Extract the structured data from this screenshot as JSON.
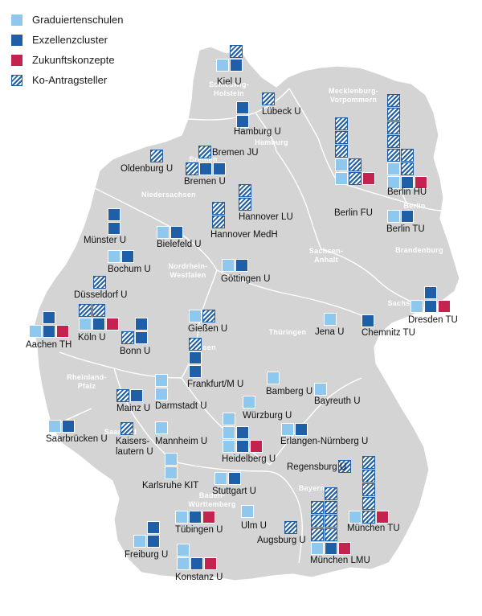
{
  "legend": {
    "items": [
      {
        "label": "Graduiertenschulen",
        "type": "grad"
      },
      {
        "label": "Exzellenzcluster",
        "type": "cluster"
      },
      {
        "label": "Zukunftskonzepte",
        "type": "zukunft"
      },
      {
        "label": "Ko-Antragsteller",
        "type": "ko"
      }
    ]
  },
  "colors": {
    "grad": "#8ec8ef",
    "cluster": "#1f5fa8",
    "zukunft": "#c42350",
    "ko_stripe": "#1f5fa8",
    "land": "#d4d4d4",
    "border": "#ffffff"
  },
  "regions": [
    {
      "id": "sh",
      "lines": [
        "Schleswig-",
        "Holstein"
      ]
    },
    {
      "id": "hh",
      "lines": [
        "Hamburg"
      ]
    },
    {
      "id": "mv",
      "lines": [
        "Mecklenburg-",
        "Vorpommern"
      ]
    },
    {
      "id": "hb",
      "lines": [
        "Bremen"
      ]
    },
    {
      "id": "ni",
      "lines": [
        "Niedersachsen"
      ]
    },
    {
      "id": "be",
      "lines": [
        "Berlin"
      ]
    },
    {
      "id": "bb",
      "lines": [
        "Brandenburg"
      ]
    },
    {
      "id": "st",
      "lines": [
        "Sachsen-",
        "Anhalt"
      ]
    },
    {
      "id": "nw",
      "lines": [
        "Nordrhein-",
        "Westfalen"
      ]
    },
    {
      "id": "sn",
      "lines": [
        "Sachsen"
      ]
    },
    {
      "id": "th",
      "lines": [
        "Thüringen"
      ]
    },
    {
      "id": "he",
      "lines": [
        "Hessen"
      ]
    },
    {
      "id": "rp",
      "lines": [
        "Rheinland-",
        "Pfalz"
      ]
    },
    {
      "id": "sl",
      "lines": [
        "Saarland"
      ]
    },
    {
      "id": "by",
      "lines": [
        "Bayern"
      ]
    },
    {
      "id": "bw",
      "lines": [
        "Baden-",
        "Württemberg"
      ]
    }
  ],
  "universities": [
    {
      "name": "Kiel U",
      "grid": [
        [
          null,
          "ko"
        ],
        [
          "grad",
          "cluster"
        ]
      ]
    },
    {
      "name": "Lübeck U",
      "grid": [
        [
          "ko"
        ]
      ]
    },
    {
      "name": "Hamburg U",
      "grid": [
        [
          "cluster"
        ],
        [
          "cluster"
        ]
      ]
    },
    {
      "name": "Bremen JU",
      "grid": [
        [
          "ko"
        ]
      ]
    },
    {
      "name": "Oldenburg U",
      "grid": [
        [
          "ko"
        ]
      ]
    },
    {
      "name": "Bremen U",
      "grid": [
        [
          "ko",
          "cluster",
          "cluster"
        ]
      ]
    },
    {
      "name": "Berlin HU",
      "grid": [
        [
          "ko",
          null
        ],
        [
          "ko",
          null
        ],
        [
          "ko",
          null
        ],
        [
          "ko",
          null
        ],
        [
          "ko",
          "ko"
        ],
        [
          "grad",
          "ko"
        ],
        [
          "grad",
          "cluster",
          "zukunft"
        ]
      ]
    },
    {
      "name": "Berlin FU",
      "grid": [
        [
          "ko",
          null,
          null
        ],
        [
          "ko",
          null,
          null
        ],
        [
          "ko",
          null,
          null
        ],
        [
          "grad",
          "ko",
          null
        ],
        [
          "grad",
          "ko",
          "zukunft"
        ]
      ]
    },
    {
      "name": "Berlin TU",
      "grid": [
        [
          "grad",
          "cluster"
        ]
      ]
    },
    {
      "name": "Hannover LU",
      "grid": [
        [
          "ko"
        ],
        [
          "ko"
        ]
      ]
    },
    {
      "name": "Hannover MedH",
      "grid": [
        [
          "ko"
        ],
        [
          "ko"
        ]
      ]
    },
    {
      "name": "Münster U",
      "grid": [
        [
          "cluster"
        ],
        [
          "cluster"
        ]
      ]
    },
    {
      "name": "Bielefeld U",
      "grid": [
        [
          "grad",
          "cluster"
        ]
      ]
    },
    {
      "name": "Bochum U",
      "grid": [
        [
          "grad",
          "cluster"
        ]
      ]
    },
    {
      "name": "Göttingen U",
      "grid": [
        [
          "grad",
          "cluster"
        ]
      ]
    },
    {
      "name": "Düsseldorf U",
      "grid": [
        [
          "ko"
        ]
      ]
    },
    {
      "name": "Aachen TH",
      "grid": [
        [
          null,
          "cluster",
          null
        ],
        [
          "grad",
          "cluster",
          "zukunft"
        ]
      ]
    },
    {
      "name": "Köln U",
      "grid": [
        [
          "ko",
          "ko",
          null
        ],
        [
          "grad",
          "cluster",
          "zukunft"
        ]
      ]
    },
    {
      "name": "Bonn U",
      "grid": [
        [
          null,
          "cluster"
        ],
        [
          "ko",
          "cluster"
        ]
      ]
    },
    {
      "name": "Gießen U",
      "grid": [
        [
          "grad",
          "ko"
        ]
      ]
    },
    {
      "name": "Frankfurt/M U",
      "grid": [
        [
          "ko"
        ],
        [
          "cluster"
        ],
        [
          "cluster"
        ]
      ]
    },
    {
      "name": "Jena U",
      "grid": [
        [
          "grad"
        ]
      ]
    },
    {
      "name": "Chemnitz TU",
      "grid": [
        [
          "cluster"
        ]
      ]
    },
    {
      "name": "Dresden TU",
      "grid": [
        [
          null,
          "cluster",
          null
        ],
        [
          "grad",
          "cluster",
          "zukunft"
        ]
      ]
    },
    {
      "name": "Bamberg U",
      "grid": [
        [
          "grad"
        ]
      ]
    },
    {
      "name": "Bayreuth U",
      "grid": [
        [
          "grad"
        ]
      ]
    },
    {
      "name": "Mainz U",
      "grid": [
        [
          "ko",
          "cluster"
        ]
      ]
    },
    {
      "name": "Darmstadt U",
      "grid": [
        [
          "grad"
        ],
        [
          "grad"
        ]
      ]
    },
    {
      "name": "Würzburg U",
      "grid": [
        [
          "grad"
        ]
      ]
    },
    {
      "name": "Saarbrücken U",
      "grid": [
        [
          "grad",
          "cluster"
        ]
      ]
    },
    {
      "name": "Kaiserslautern U",
      "grid": [
        [
          "ko"
        ]
      ]
    },
    {
      "name": "Mannheim U",
      "grid": [
        [
          "grad"
        ]
      ]
    },
    {
      "name": "Heidelberg U",
      "grid": [
        [
          "grad",
          null,
          null
        ],
        [
          "grad",
          "cluster",
          null
        ],
        [
          "grad",
          "cluster",
          "zukunft"
        ]
      ]
    },
    {
      "name": "Erlangen-Nürnberg U",
      "grid": [
        [
          "grad",
          "cluster"
        ]
      ]
    },
    {
      "name": "Regensburg U",
      "grid": [
        [
          "ko"
        ]
      ]
    },
    {
      "name": "Karlsruhe KIT",
      "grid": [
        [
          "grad"
        ],
        [
          "grad"
        ]
      ]
    },
    {
      "name": "Stuttgart U",
      "grid": [
        [
          "grad",
          "cluster"
        ]
      ]
    },
    {
      "name": "Ulm U",
      "grid": [
        [
          "grad"
        ]
      ]
    },
    {
      "name": "Tübingen U",
      "grid": [
        [
          "grad",
          "cluster",
          "zukunft"
        ]
      ]
    },
    {
      "name": "Augsburg U",
      "grid": [
        [
          "ko"
        ]
      ]
    },
    {
      "name": "München TU",
      "grid": [
        [
          null,
          "ko",
          null
        ],
        [
          null,
          "ko",
          null
        ],
        [
          null,
          "ko",
          null
        ],
        [
          null,
          "ko",
          null
        ],
        [
          "grad",
          "ko",
          "zukunft"
        ]
      ]
    },
    {
      "name": "München LMU",
      "grid": [
        [
          null,
          "ko"
        ],
        [
          "ko",
          "ko"
        ],
        [
          "ko",
          "ko"
        ],
        [
          "ko",
          "ko"
        ],
        [
          "grad",
          "cluster",
          "zukunft"
        ]
      ]
    },
    {
      "name": "Freiburg U",
      "grid": [
        [
          null,
          "cluster"
        ],
        [
          "grad",
          "cluster"
        ]
      ]
    },
    {
      "name": "Konstanz U",
      "grid": [
        [
          "grad",
          null,
          null
        ],
        [
          "grad",
          "cluster",
          "zukunft"
        ]
      ]
    }
  ],
  "city_labels": {
    "kiel": "Kiel U",
    "luebeck": "Lübeck U",
    "hamburg": "Hamburg U",
    "bremen_ju": "Bremen JU",
    "oldenburg": "Oldenburg U",
    "bremen": "Bremen U",
    "berlin_hu": "Berlin HU",
    "berlin_fu": "Berlin FU",
    "berlin_tu": "Berlin TU",
    "hannover_lu": "Hannover LU",
    "hannover_medh": "Hannover MedH",
    "muenster": "Münster U",
    "bielefeld": "Bielefeld U",
    "bochum": "Bochum U",
    "goettingen": "Göttingen U",
    "duesseldorf": "Düsseldorf U",
    "aachen": "Aachen TH",
    "koeln": "Köln U",
    "bonn": "Bonn U",
    "giessen": "Gießen U",
    "frankfurt": "Frankfurt/M U",
    "jena": "Jena U",
    "chemnitz": "Chemnitz TU",
    "dresden": "Dresden TU",
    "bamberg": "Bamberg U",
    "bayreuth": "Bayreuth U",
    "mainz": "Mainz U",
    "darmstadt": "Darmstadt U",
    "wuerzburg": "Würzburg U",
    "saarbruecken": "Saarbrücken U",
    "kaiserslautern_1": "Kaisers-",
    "kaiserslautern_2": "lautern U",
    "mannheim": "Mannheim U",
    "heidelberg": "Heidelberg U",
    "erlangen": "Erlangen-Nürnberg U",
    "regensburg": "Regensburg U",
    "karlsruhe": "Karlsruhe KIT",
    "stuttgart": "Stuttgart U",
    "ulm": "Ulm U",
    "tuebingen": "Tübingen U",
    "augsburg": "Augsburg U",
    "muenchen_tu": "München TU",
    "muenchen_lmu": "München LMU",
    "freiburg": "Freiburg U",
    "konstanz": "Konstanz U"
  }
}
